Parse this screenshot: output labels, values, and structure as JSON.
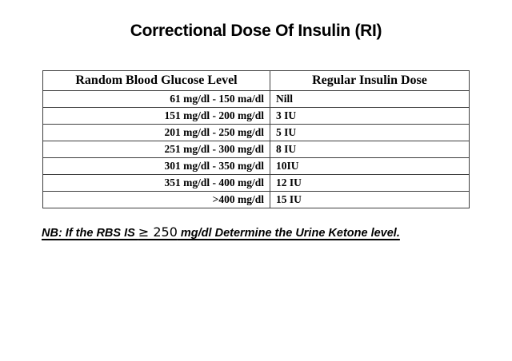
{
  "title": "Correctional Dose Of Insulin (RI)",
  "table": {
    "headers": [
      "Random Blood Glucose Level",
      "Regular Insulin Dose"
    ],
    "rows": [
      {
        "glucose": "61 mg/dl - 150 ma/dl",
        "dose": "Nill"
      },
      {
        "glucose": "151 mg/dl - 200 mg/dl",
        "dose": "3 IU"
      },
      {
        "glucose": "201 mg/dl - 250 mg/dl",
        "dose": "5 IU"
      },
      {
        "glucose": "251 mg/dl - 300 mg/dl",
        "dose": "8 IU"
      },
      {
        "glucose": "301 mg/dl - 350 mg/dl",
        "dose": "10IU"
      },
      {
        "glucose": "351 mg/dl - 400 mg/dl",
        "dose": "12 IU"
      },
      {
        "glucose": ">400 mg/dl",
        "dose": "15 IU"
      }
    ]
  },
  "note": {
    "prefix": "NB: If the RBS IS ",
    "math": "≥ 250",
    "suffix": " mg/dl Determine the Urine Ketone level."
  },
  "colors": {
    "text": "#000000",
    "border": "#3f3f3f",
    "background": "#ffffff"
  }
}
